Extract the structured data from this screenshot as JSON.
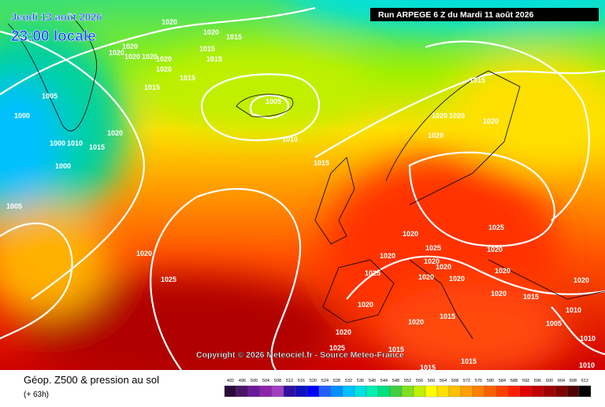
{
  "header": {
    "date": "Jeudi 13 août 2026",
    "time": "23:00 locale",
    "run": "Run ARPEGE 6 Z du Mardi 11 août 2026"
  },
  "copyright": "Copyright © 2026 Meteociel.fr - Source Meteo-France",
  "footer": {
    "title": "Géop. Z500 & pression au sol",
    "lead": "(+ 63h)"
  },
  "isobar_labels": [
    "1020",
    "1020",
    "1015",
    "1020",
    "1020",
    "1020",
    "1020",
    "1020",
    "1020",
    "1015",
    "1015",
    "1015",
    "1015",
    "1005",
    "1005",
    "1000",
    "1020",
    "1000",
    "1010",
    "1015",
    "1010",
    "1000",
    "1015",
    "1005",
    "1015",
    "1020",
    "1020",
    "1020",
    "1020",
    "1020",
    "1025",
    "1025",
    "1020",
    "1020",
    "1025",
    "1020",
    "1020",
    "1020",
    "1020",
    "1025",
    "1020",
    "1020",
    "1020",
    "1020",
    "1015",
    "1020",
    "1015",
    "1020",
    "1010",
    "1005",
    "1010",
    "1020",
    "1025",
    "1015",
    "1015",
    "1015",
    "1010"
  ],
  "scale": {
    "values": [
      492,
      496,
      500,
      504,
      508,
      512,
      516,
      520,
      524,
      528,
      532,
      536,
      540,
      544,
      548,
      552,
      556,
      560,
      564,
      568,
      572,
      576,
      580,
      584,
      588,
      592,
      596,
      600,
      604,
      608,
      612
    ],
    "colors": [
      "#2a0a3a",
      "#4b1468",
      "#6a1b9a",
      "#8e24aa",
      "#a040c0",
      "#3010a0",
      "#1010c0",
      "#0000ff",
      "#2060ff",
      "#0090ff",
      "#00c0ff",
      "#00e0e0",
      "#00f0b0",
      "#00e080",
      "#40d040",
      "#80e020",
      "#c0f000",
      "#ffff00",
      "#ffe000",
      "#ffc000",
      "#ffa000",
      "#ff8000",
      "#ff6000",
      "#ff4000",
      "#ff2000",
      "#e00000",
      "#c00000",
      "#a00000",
      "#800000",
      "#500000",
      "#000000"
    ]
  }
}
